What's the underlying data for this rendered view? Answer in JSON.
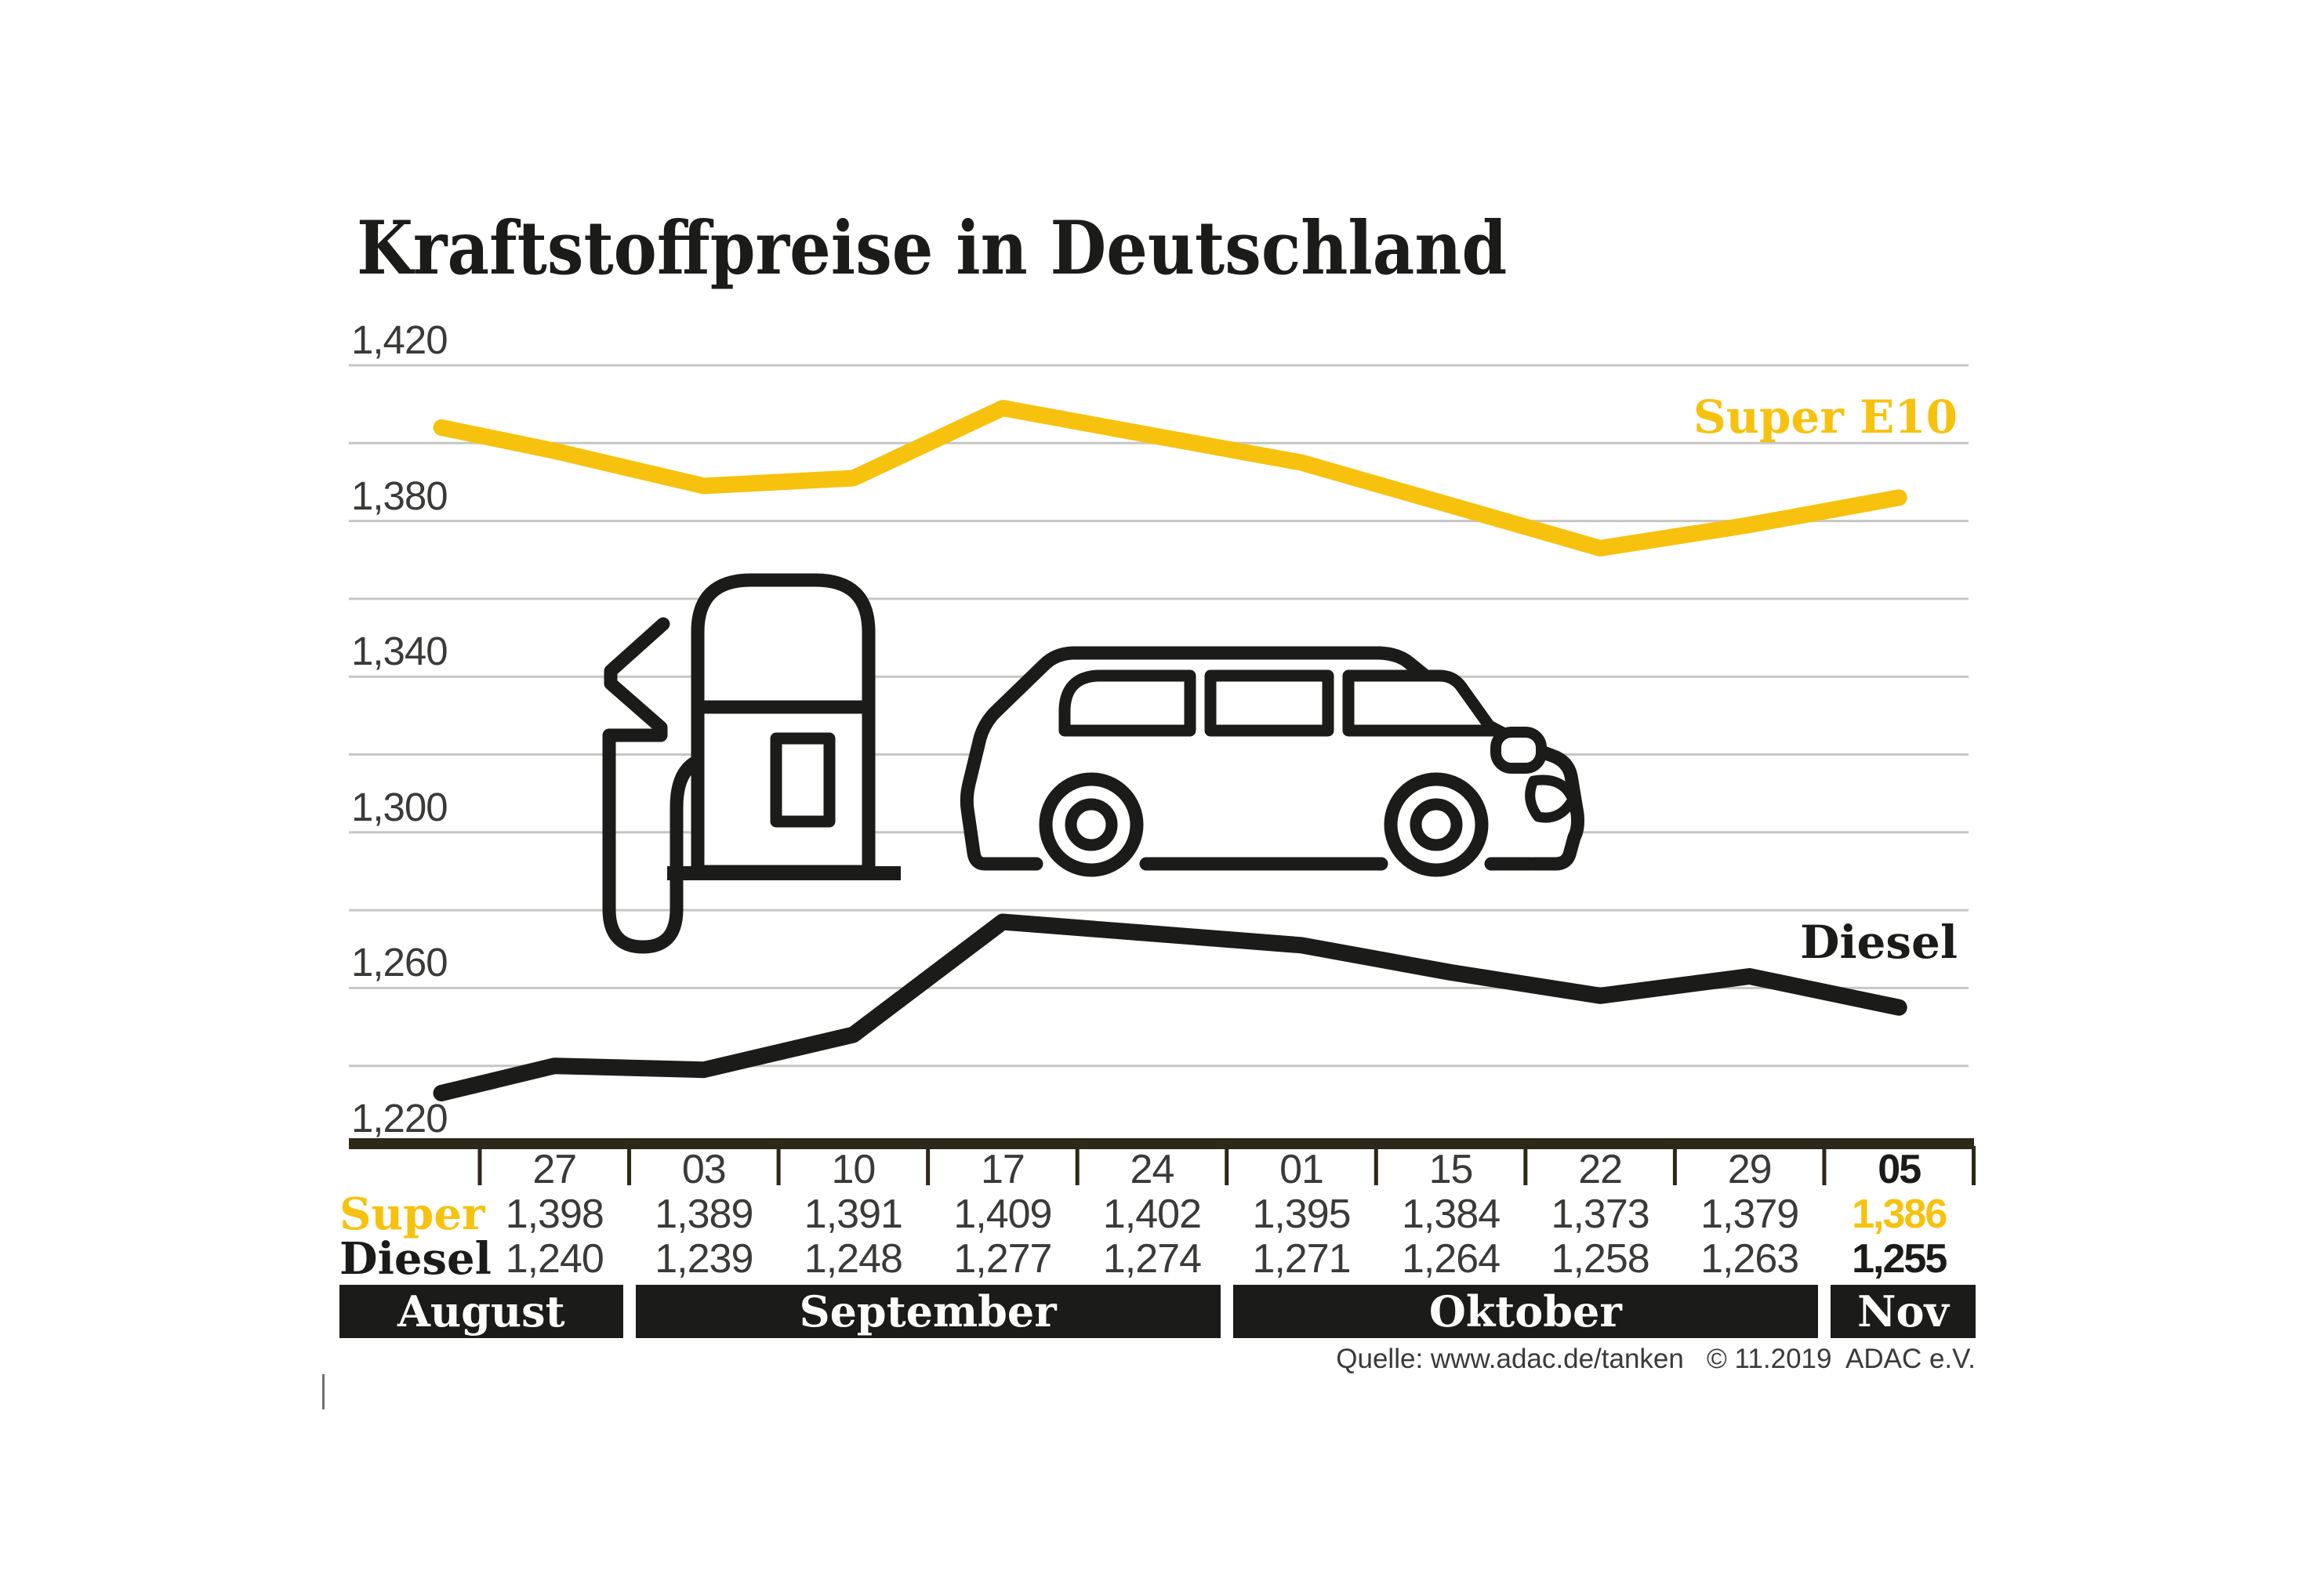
{
  "title": "Kraftstoffpreise in Deutschland",
  "series_labels": {
    "super": "Super E10",
    "diesel": "Diesel"
  },
  "y_axis": {
    "labels": [
      "1,420",
      "1,380",
      "1,340",
      "1,300",
      "1,260",
      "1,220"
    ]
  },
  "table": {
    "dates": [
      "27",
      "03",
      "10",
      "17",
      "24",
      "01",
      "15",
      "22",
      "29",
      "05"
    ],
    "super_label": "Super",
    "diesel_label": "Diesel",
    "super_values": [
      "1,398",
      "1,389",
      "1,391",
      "1,409",
      "1,402",
      "1,395",
      "1,384",
      "1,373",
      "1,379",
      "1,386"
    ],
    "diesel_values": [
      "1,240",
      "1,239",
      "1,248",
      "1,277",
      "1,274",
      "1,271",
      "1,264",
      "1,258",
      "1,263",
      "1,255"
    ]
  },
  "months": [
    {
      "label": "August",
      "span": 1
    },
    {
      "label": "September",
      "span": 4
    },
    {
      "label": "Oktober",
      "span": 4
    },
    {
      "label": "Nov",
      "span": 1
    }
  ],
  "source": "Quelle: www.adac.de/tanken   © 11.2019  ADAC e.V.",
  "colors": {
    "yellow": "#f6c20e",
    "dark": "#1b1b19",
    "grid": "#c6c6c5",
    "axis": "#2d2817",
    "text_gray": "#3a3a38"
  },
  "chart_data": {
    "type": "line",
    "title": "Kraftstoffpreise in Deutschland",
    "categories": [
      "Aug 27",
      "Sep 03",
      "Sep 10",
      "Sep 17",
      "Sep 24",
      "Okt 01",
      "Okt 15",
      "Okt 22",
      "Okt 29",
      "Nov 05"
    ],
    "series": [
      {
        "name": "Super E10",
        "color": "#f6c20e",
        "values": [
          1.398,
          1.389,
          1.391,
          1.409,
          1.402,
          1.395,
          1.384,
          1.373,
          1.379,
          1.386
        ]
      },
      {
        "name": "Diesel",
        "color": "#1b1b19",
        "values": [
          1.24,
          1.239,
          1.248,
          1.277,
          1.274,
          1.271,
          1.264,
          1.258,
          1.263,
          1.255
        ]
      }
    ],
    "lead_in_estimated": {
      "Super E10": 1.404,
      "Diesel": 1.233
    },
    "ylim": [
      1.22,
      1.42
    ],
    "ytick_step": 0.02,
    "ytick_labeled": [
      1.42,
      1.38,
      1.34,
      1.3,
      1.26,
      1.22
    ],
    "grid": true,
    "legend_position": "inline-right"
  }
}
